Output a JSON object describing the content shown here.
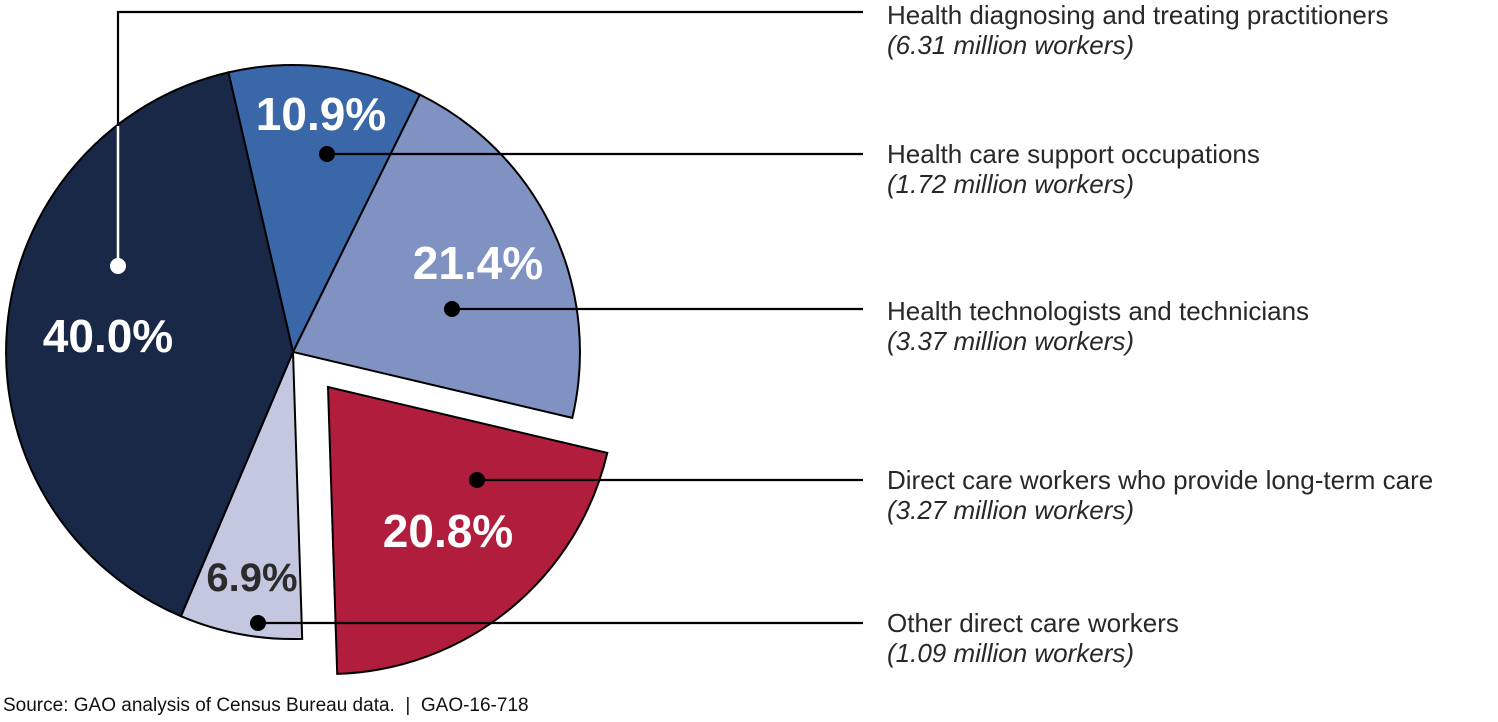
{
  "chart_data": {
    "type": "pie",
    "slices": [
      {
        "label": "Health care support occupations",
        "sublabel": "(1.72 million workers)",
        "percent": 10.9,
        "percent_label": "10.9%",
        "workers_millions": 1.72,
        "color": "#3967a7",
        "label_color": "#ffffff",
        "exploded": false
      },
      {
        "label": "Health technologists and technicians",
        "sublabel": "(3.37 million workers)",
        "percent": 21.4,
        "percent_label": "21.4%",
        "workers_millions": 3.37,
        "color": "#8092c2",
        "label_color": "#ffffff",
        "exploded": false
      },
      {
        "label": "Direct care workers who provide long-term care",
        "sublabel": "(3.27 million workers)",
        "percent": 20.8,
        "percent_label": "20.8%",
        "workers_millions": 3.27,
        "color": "#b11e3d",
        "label_color": "#ffffff",
        "exploded": true
      },
      {
        "label": "Other direct care workers",
        "sublabel": "(1.09 million workers)",
        "percent": 6.9,
        "percent_label": "6.9%",
        "workers_millions": 1.09,
        "color": "#c3c8e0",
        "label_color": "#2b2b2b",
        "exploded": false
      },
      {
        "label": "Health diagnosing and treating practitioners",
        "sublabel": "(6.31 million workers)",
        "percent": 40.0,
        "percent_label": "40.0%",
        "workers_millions": 6.31,
        "color": "#1a2847",
        "label_color": "#ffffff",
        "exploded": false
      }
    ],
    "legend_position": "right-callouts",
    "source": "Source: GAO analysis of Census Bureau data.  |  GAO-16-718"
  }
}
